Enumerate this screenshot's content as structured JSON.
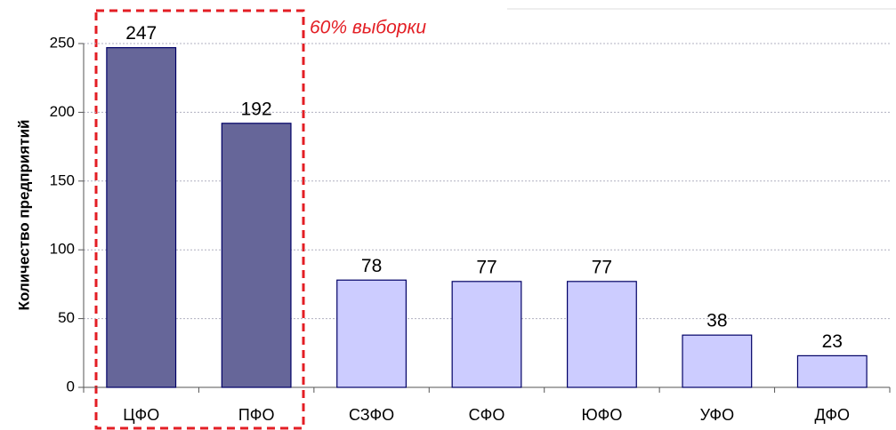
{
  "chart_data": {
    "type": "bar",
    "y_axis_label": "Количество предприятий",
    "annotation": "60% выборки",
    "categories": [
      "ЦФО",
      "ПФО",
      "СЗФО",
      "СФО",
      "ЮФО",
      "УФО",
      "ДФО"
    ],
    "values": [
      247,
      192,
      78,
      77,
      77,
      38,
      23
    ],
    "colors": [
      "#666699",
      "#666699",
      "#ccccff",
      "#ccccff",
      "#ccccff",
      "#ccccff",
      "#ccccff"
    ],
    "ylim": [
      0,
      250
    ],
    "yticks": [
      0,
      50,
      100,
      150,
      200,
      250
    ],
    "grid": true
  }
}
